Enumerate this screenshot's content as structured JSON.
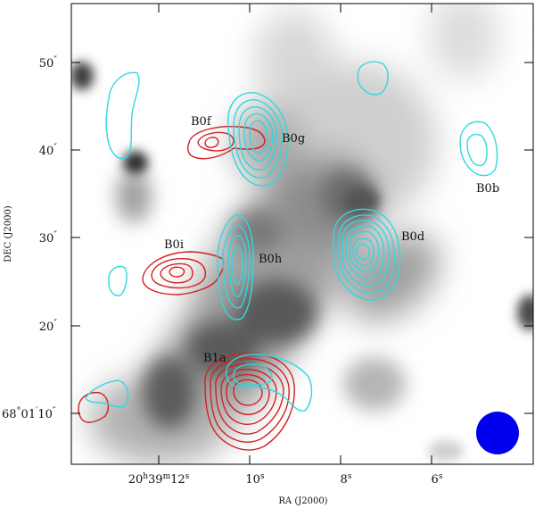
{
  "chart_data": {
    "type": "contour-overlay",
    "xlabel": "RA (J2000)",
    "ylabel": "DEC (J2000)",
    "x_ticks": [
      {
        "value": "20h39m12s",
        "label_parts": [
          "20",
          "h",
          "39",
          "m",
          "12",
          "s"
        ]
      },
      {
        "value": "10s",
        "label_parts": [
          "10",
          "s"
        ]
      },
      {
        "value": "8s",
        "label_parts": [
          "8",
          "s"
        ]
      },
      {
        "value": "6s",
        "label_parts": [
          "6",
          "s"
        ]
      }
    ],
    "y_ticks": [
      {
        "value": "50\"",
        "label_parts": [
          "50",
          "″"
        ]
      },
      {
        "value": "40\"",
        "label_parts": [
          "40",
          "″"
        ]
      },
      {
        "value": "30\"",
        "label_parts": [
          "30",
          "″"
        ]
      },
      {
        "value": "20\"",
        "label_parts": [
          "20",
          "″"
        ]
      },
      {
        "value": "68°01'10\"",
        "label_parts": [
          "68",
          "°",
          "01",
          "′",
          "10",
          "″"
        ]
      }
    ],
    "source_labels": [
      "B0f",
      "B0g",
      "B0b",
      "B0i",
      "B0h",
      "B0d",
      "B1a"
    ],
    "contour_colors": {
      "red": "#d42020",
      "cyan": "#30d8e0",
      "beam": "#0000ee"
    },
    "background": "grayscale emission map"
  }
}
